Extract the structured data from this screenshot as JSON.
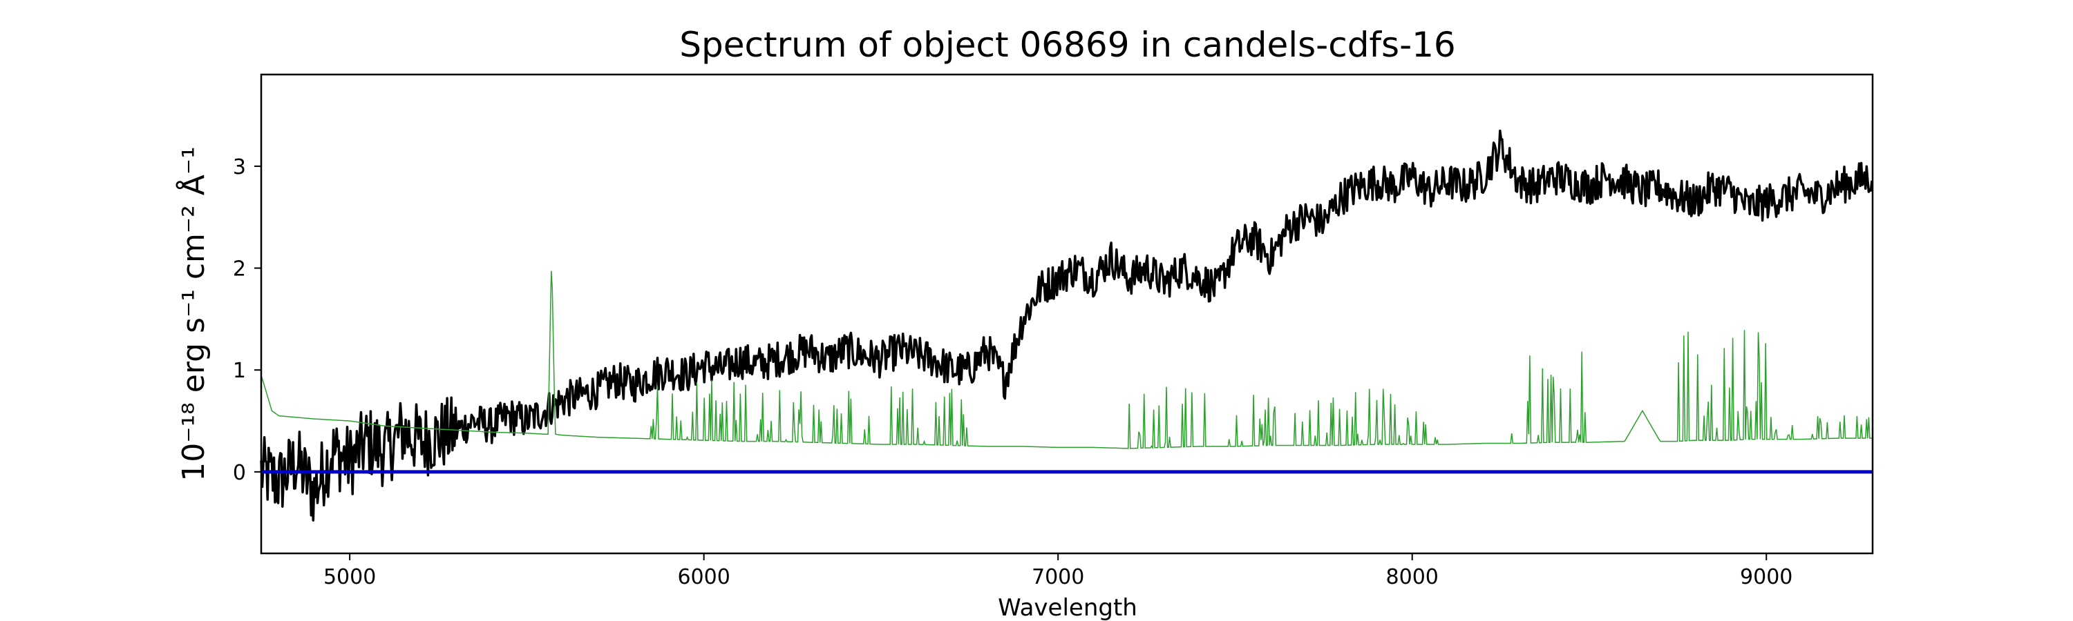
{
  "chart_data": {
    "type": "line",
    "title": "Spectrum of object 06869 in candels-cdfs-16",
    "xlabel": "Wavelength",
    "ylabel": "10⁻¹⁸ erg s⁻¹ cm⁻² Å⁻¹",
    "xlim": [
      4750,
      9300
    ],
    "ylim": [
      -0.8,
      3.9
    ],
    "x_ticks": [
      5000,
      6000,
      7000,
      8000,
      9000
    ],
    "y_ticks": [
      0,
      1,
      2,
      3
    ],
    "grid": false,
    "legend": "none",
    "series": [
      {
        "color": "#000000",
        "x": [
          4750,
          4800,
          4850,
          4900,
          4950,
          5000,
          5050,
          5100,
          5150,
          5200,
          5250,
          5300,
          5350,
          5400,
          5450,
          5500,
          5550,
          5600,
          5650,
          5700,
          5750,
          5800,
          5850,
          5900,
          5950,
          6000,
          6050,
          6100,
          6150,
          6200,
          6250,
          6300,
          6350,
          6400,
          6450,
          6500,
          6550,
          6600,
          6650,
          6700,
          6750,
          6800,
          6850,
          6900,
          6950,
          7000,
          7050,
          7100,
          7150,
          7200,
          7250,
          7300,
          7350,
          7400,
          7450,
          7500,
          7550,
          7600,
          7650,
          7700,
          7750,
          7800,
          7850,
          7900,
          7950,
          8000,
          8050,
          8100,
          8150,
          8200,
          8250,
          8300,
          8350,
          8400,
          8450,
          8500,
          8550,
          8600,
          8650,
          8700,
          8750,
          8800,
          8850,
          8900,
          8950,
          9000,
          9050,
          9100,
          9150,
          9200,
          9250,
          9300
        ],
        "values": [
          0.0,
          -0.1,
          0.1,
          -0.2,
          0.2,
          0.1,
          0.3,
          0.2,
          0.4,
          0.3,
          0.35,
          0.4,
          0.5,
          0.45,
          0.55,
          0.5,
          0.6,
          0.7,
          0.75,
          0.8,
          0.9,
          0.85,
          0.95,
          1.0,
          0.95,
          1.05,
          1.0,
          1.1,
          1.05,
          1.1,
          1.15,
          1.2,
          1.1,
          1.2,
          1.15,
          1.1,
          1.2,
          1.15,
          1.1,
          1.0,
          1.0,
          1.2,
          0.9,
          1.5,
          1.8,
          1.9,
          2.0,
          1.9,
          2.1,
          1.9,
          2.0,
          1.85,
          2.0,
          1.9,
          1.8,
          2.2,
          2.3,
          2.1,
          2.4,
          2.5,
          2.45,
          2.7,
          2.8,
          2.85,
          2.8,
          2.9,
          2.75,
          2.85,
          2.8,
          2.9,
          3.2,
          2.85,
          2.8,
          2.9,
          2.85,
          2.8,
          2.9,
          2.85,
          2.75,
          2.8,
          2.7,
          2.65,
          2.8,
          2.75,
          2.6,
          2.65,
          2.7,
          2.75,
          2.7,
          2.8,
          2.85,
          2.9
        ],
        "noise": 0.18
      },
      {
        "color": "#2ca02c",
        "x": [
          4750,
          4780,
          4800,
          4900,
          5000,
          5100,
          5200,
          5300,
          5400,
          5500,
          5550,
          5560,
          5570,
          5580,
          5600,
          5700,
          5800,
          5900,
          6000,
          6100,
          6200,
          6300,
          6400,
          6500,
          6600,
          6700,
          6800,
          6900,
          7000,
          7100,
          7200,
          7300,
          7400,
          7500,
          7600,
          7700,
          7800,
          7900,
          8000,
          8100,
          8200,
          8250,
          8300,
          8400,
          8500,
          8600,
          8650,
          8700,
          8750,
          8800,
          8850,
          8900,
          8950,
          9000,
          9100,
          9200,
          9300
        ],
        "values": [
          0.95,
          0.6,
          0.55,
          0.52,
          0.5,
          0.45,
          0.43,
          0.41,
          0.39,
          0.38,
          0.37,
          0.37,
          2.15,
          0.37,
          0.36,
          0.34,
          0.33,
          0.32,
          0.31,
          0.3,
          0.3,
          0.29,
          0.28,
          0.27,
          0.27,
          0.26,
          0.25,
          0.25,
          0.24,
          0.24,
          0.23,
          0.24,
          0.25,
          0.25,
          0.26,
          0.26,
          0.26,
          0.27,
          0.27,
          0.27,
          0.28,
          0.28,
          0.28,
          0.29,
          0.29,
          0.3,
          0.6,
          0.3,
          0.3,
          0.31,
          0.31,
          0.31,
          0.32,
          0.32,
          0.32,
          0.33,
          0.33
        ]
      },
      {
        "color": "#0000cc",
        "x": [
          4750,
          9300
        ],
        "values": [
          0,
          0
        ]
      }
    ]
  }
}
